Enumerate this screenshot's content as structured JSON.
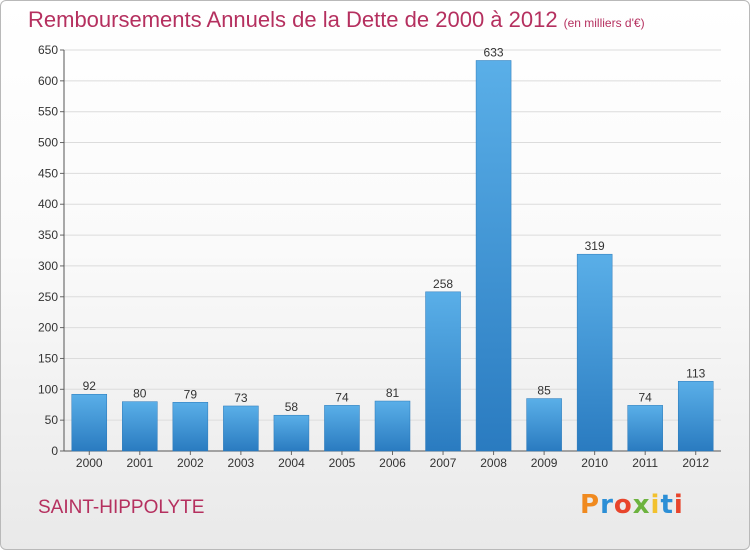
{
  "page": {
    "commune": "SAINT-HIPPOLYTE",
    "logo_text": "Proxiti",
    "logo_colors": [
      "#f08a1f",
      "#2c8fd6",
      "#e8452c",
      "#6db33f",
      "#f2c12e",
      "#2c8fd6",
      "#e8452c"
    ],
    "accent_color": "#b5305f"
  },
  "chart_data": {
    "type": "bar",
    "title": "Remboursements Annuels de la Dette de 2000 à 2012",
    "subtitle": "(en milliers d'€)",
    "categories": [
      "2000",
      "2001",
      "2002",
      "2003",
      "2004",
      "2005",
      "2006",
      "2007",
      "2008",
      "2009",
      "2010",
      "2011",
      "2012"
    ],
    "values": [
      92,
      80,
      79,
      73,
      58,
      74,
      81,
      258,
      633,
      85,
      319,
      74,
      113
    ],
    "ylim": [
      0,
      650
    ],
    "yticks": [
      0,
      50,
      100,
      150,
      200,
      250,
      300,
      350,
      400,
      450,
      500,
      550,
      600,
      650
    ],
    "grid": true,
    "bar_color_top": "#5aafe8",
    "bar_color_bottom": "#2a7bc0"
  }
}
